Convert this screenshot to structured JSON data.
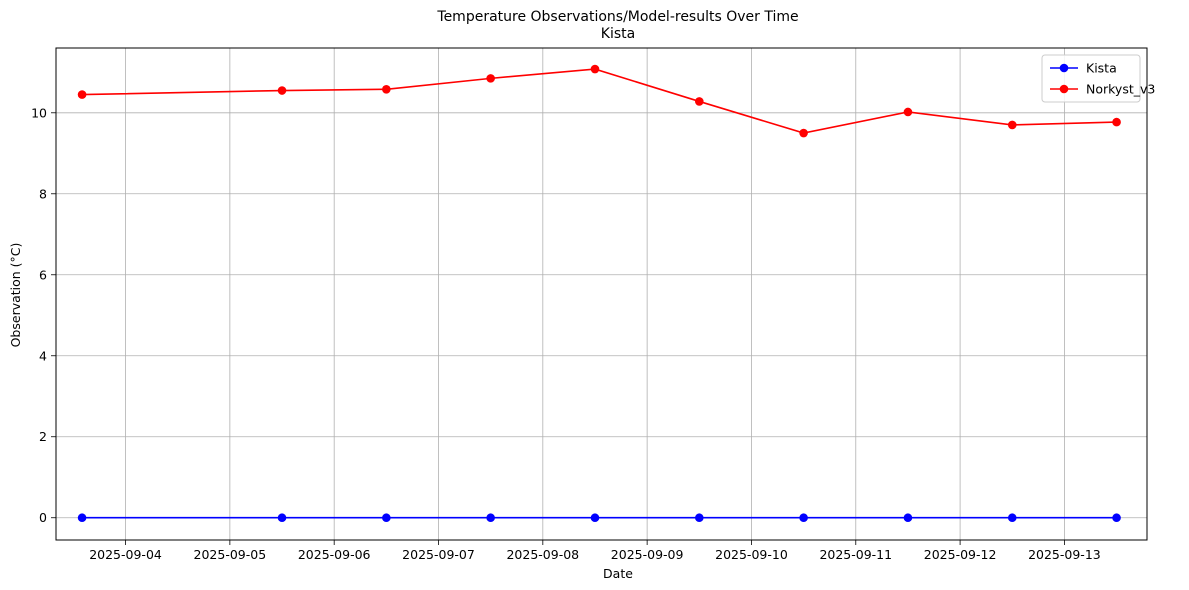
{
  "chart_data": {
    "type": "line",
    "title": "Temperature Observations/Model-results Over Time",
    "subtitle": "Kista",
    "xlabel": "Date",
    "ylabel": "Observation (°C)",
    "x_ticks": [
      "2025-09-04",
      "2025-09-05",
      "2025-09-06",
      "2025-09-07",
      "2025-09-08",
      "2025-09-09",
      "2025-09-10",
      "2025-09-11",
      "2025-09-12",
      "2025-09-13"
    ],
    "y_ticks": [
      0,
      2,
      4,
      6,
      8,
      10
    ],
    "xlim": [
      "2025-09-03T08:00",
      "2025-09-13T19:00"
    ],
    "ylim": [
      -0.55,
      11.6
    ],
    "grid": true,
    "legend_position": "top-right",
    "x": [
      "2025-09-03T14:00",
      "2025-09-05T12:00",
      "2025-09-06T12:00",
      "2025-09-07T12:00",
      "2025-09-08T12:00",
      "2025-09-09T12:00",
      "2025-09-10T12:00",
      "2025-09-11T12:00",
      "2025-09-12T12:00",
      "2025-09-13T12:00"
    ],
    "series": [
      {
        "name": "Kista",
        "color": "#0000ff",
        "marker": "circle",
        "values": [
          0,
          0,
          0,
          0,
          0,
          0,
          0,
          0,
          0,
          0
        ]
      },
      {
        "name": "Norkyst_v3",
        "color": "#ff0000",
        "marker": "circle",
        "values": [
          10.45,
          10.55,
          10.58,
          10.85,
          11.08,
          10.28,
          9.5,
          10.02,
          9.7,
          9.77
        ]
      }
    ]
  }
}
